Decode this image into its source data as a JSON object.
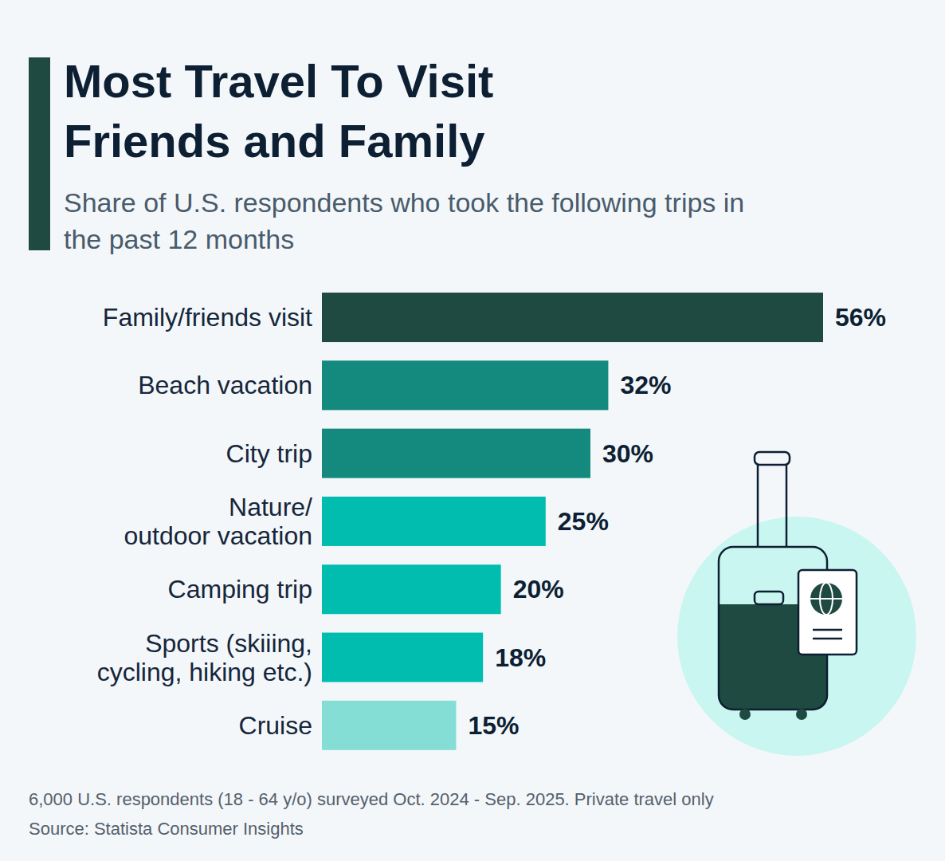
{
  "chart_data": {
    "type": "bar",
    "orientation": "horizontal",
    "title": "Most Travel To Visit Friends and Family",
    "subtitle": "Share of U.S. respondents who took the following trips in the past 12 months",
    "categories": [
      "Family/friends visit",
      "Beach vacation",
      "City trip",
      "Nature/\noutdoor vacation",
      "Camping trip",
      "Sports (skiiing,\ncycling, hiking etc.)",
      "Cruise"
    ],
    "values": [
      56,
      32,
      30,
      25,
      20,
      18,
      15
    ],
    "value_labels": [
      "56%",
      "32%",
      "30%",
      "25%",
      "20%",
      "18%",
      "15%"
    ],
    "colors": [
      "#1f4a41",
      "#138a7d",
      "#138a7d",
      "#00bdb0",
      "#00bdb0",
      "#00bdb0",
      "#85ded6"
    ],
    "data_labels": true,
    "tick_labels": "y",
    "grid": false,
    "note": "6,000 U.S. respondents (18 - 64 y/o) surveyed Oct. 2024 - Sep. 2025. Private travel only",
    "source": "Source: Statista Consumer Insights"
  }
}
